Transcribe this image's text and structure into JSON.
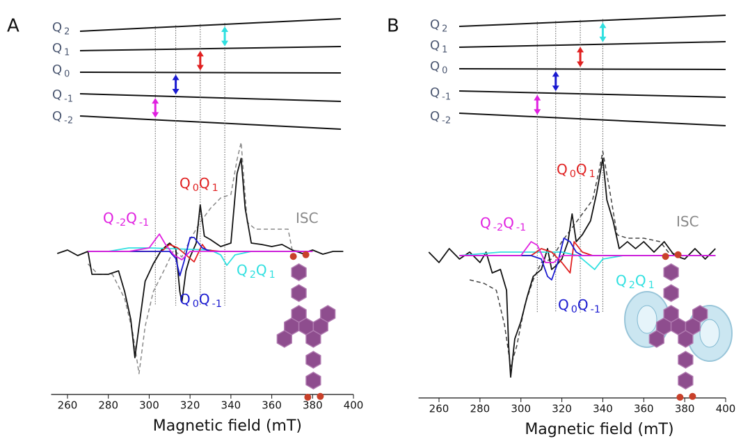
{
  "chart_data": [
    {
      "type": "line",
      "panel_label": "A",
      "xlabel": "Magnetic field (mT)",
      "xlim": [
        252,
        400
      ],
      "xticks": [
        260,
        280,
        300,
        320,
        340,
        360,
        380,
        400
      ],
      "ylim": [
        -1.8,
        1.6
      ],
      "levels": [
        {
          "parts": [
            "Q",
            "2"
          ]
        },
        {
          "parts": [
            "Q",
            "1"
          ]
        },
        {
          "parts": [
            "Q",
            "0"
          ]
        },
        {
          "parts": [
            "Q",
            "-1"
          ]
        },
        {
          "parts": [
            "Q",
            "-2"
          ]
        }
      ],
      "transitions": [
        {
          "field": 303,
          "color": "#e020e0"
        },
        {
          "field": 313,
          "color": "#1a1ad0"
        },
        {
          "field": 325,
          "color": "#e02020"
        },
        {
          "field": 337,
          "color": "#30e0e0"
        }
      ],
      "annotations": [
        {
          "parts": [
            "Q",
            "-2",
            "Q",
            "-1"
          ],
          "color": "#e020e0"
        },
        {
          "parts": [
            "Q",
            "0",
            "Q",
            "1"
          ],
          "color": "#e02020"
        },
        {
          "parts": [
            "ISC"
          ],
          "color": "#888888"
        },
        {
          "parts": [
            "Q",
            "2",
            "Q",
            "1"
          ],
          "color": "#30e0e0"
        },
        {
          "parts": [
            "Q",
            "0",
            "Q",
            "-1"
          ],
          "color": "#1a1ad0"
        }
      ],
      "series": [
        {
          "color": "#888888",
          "style": "dashed",
          "x": [
            270,
            275,
            282,
            288,
            292,
            295,
            298,
            302,
            308,
            312,
            316,
            320,
            325,
            330,
            335,
            340,
            343,
            345,
            348,
            352,
            360,
            368,
            370,
            375
          ],
          "values": [
            -0.18,
            -0.33,
            -0.33,
            -0.68,
            -1.18,
            -1.76,
            -1.08,
            -0.58,
            -0.23,
            0.02,
            -0.08,
            0.17,
            0.42,
            0.62,
            0.77,
            0.82,
            1.32,
            1.57,
            0.42,
            0.32,
            0.32,
            0.32,
            0.02,
            0
          ]
        },
        {
          "color": "#111111",
          "style": "solid",
          "x": [
            255,
            260,
            265,
            270,
            272,
            280,
            285,
            288,
            291,
            293,
            295,
            298,
            302,
            306,
            310,
            313,
            315,
            316,
            318,
            320,
            323,
            325,
            327,
            330,
            335,
            340,
            343,
            345,
            347,
            350,
            355,
            360,
            365,
            370,
            375,
            380,
            385,
            390,
            395
          ],
          "values": [
            -0.03,
            0.02,
            -0.06,
            0,
            -0.33,
            -0.33,
            -0.28,
            -0.58,
            -0.98,
            -1.53,
            -1.08,
            -0.43,
            -0.18,
            0.02,
            0.12,
            0.04,
            -0.58,
            -0.73,
            -0.28,
            -0.08,
            0.12,
            0.67,
            0.22,
            0.17,
            0.07,
            0.12,
            1.12,
            1.34,
            0.62,
            0.12,
            0.1,
            0.07,
            0.1,
            0.02,
            -0.03,
            0.02,
            -0.04,
            0,
            0
          ]
        },
        {
          "color": "#30e0e0",
          "style": "solid",
          "x": [
            280,
            290,
            300,
            320,
            330,
            335,
            338,
            342,
            350,
            370
          ],
          "values": [
            0,
            0.05,
            0.05,
            0.03,
            0.02,
            -0.05,
            -0.2,
            -0.05,
            0,
            0
          ]
        },
        {
          "color": "#e02020",
          "style": "solid",
          "x": [
            270,
            306,
            310,
            314,
            318,
            322,
            326,
            328,
            335,
            380
          ],
          "values": [
            0,
            0,
            0.1,
            0.05,
            -0.05,
            -0.15,
            0.1,
            0.02,
            0,
            0
          ]
        },
        {
          "color": "#1a1ad0",
          "style": "solid",
          "x": [
            270,
            300,
            310,
            313,
            315,
            317,
            320,
            322,
            326,
            330,
            380
          ],
          "values": [
            0,
            0,
            0,
            -0.1,
            -0.35,
            -0.15,
            0.2,
            0.2,
            0.05,
            0,
            0
          ]
        },
        {
          "color": "#e020e0",
          "style": "solid",
          "x": [
            270,
            290,
            300,
            305,
            308,
            312,
            316,
            320,
            380
          ],
          "values": [
            0,
            0,
            0.05,
            0.25,
            0.1,
            -0.05,
            -0.12,
            0,
            0
          ]
        }
      ]
    },
    {
      "type": "line",
      "panel_label": "B",
      "xlabel": "Magnetic field (mT)",
      "xlim": [
        250,
        400
      ],
      "xticks": [
        260,
        280,
        300,
        320,
        340,
        360,
        380,
        400
      ],
      "ylim": [
        -1.8,
        1.6
      ],
      "levels": [
        {
          "parts": [
            "Q",
            "2"
          ]
        },
        {
          "parts": [
            "Q",
            "1"
          ]
        },
        {
          "parts": [
            "Q",
            "0"
          ]
        },
        {
          "parts": [
            "Q",
            "-1"
          ]
        },
        {
          "parts": [
            "Q",
            "-2"
          ]
        }
      ],
      "transitions": [
        {
          "field": 308,
          "color": "#e020e0"
        },
        {
          "field": 317,
          "color": "#1a1ad0"
        },
        {
          "field": 329,
          "color": "#e02020"
        },
        {
          "field": 340,
          "color": "#30e0e0"
        }
      ],
      "annotations": [
        {
          "parts": [
            "Q",
            "-2",
            "Q",
            "-1"
          ],
          "color": "#e020e0"
        },
        {
          "parts": [
            "Q",
            "0",
            "Q",
            "1"
          ],
          "color": "#e02020"
        },
        {
          "parts": [
            "ISC"
          ],
          "color": "#888888"
        },
        {
          "parts": [
            "Q",
            "2",
            "Q",
            "1"
          ],
          "color": "#30e0e0"
        },
        {
          "parts": [
            "Q",
            "0",
            "Q",
            "-1"
          ],
          "color": "#1a1ad0"
        }
      ],
      "series": [
        {
          "color": "#444444",
          "style": "dashed",
          "x": [
            275,
            282,
            288,
            292,
            295,
            298,
            302,
            306,
            310,
            315,
            320,
            325,
            330,
            335,
            338,
            340,
            343,
            347,
            352,
            360,
            368,
            372,
            378
          ],
          "values": [
            -0.35,
            -0.4,
            -0.5,
            -1.0,
            -1.6,
            -1.3,
            -0.7,
            -0.35,
            -0.1,
            -0.05,
            0.2,
            0.4,
            0.6,
            0.8,
            1.2,
            1.5,
            1.0,
            0.3,
            0.25,
            0.25,
            0.2,
            0.05,
            0
          ]
        },
        {
          "color": "#111111",
          "style": "solid",
          "x": [
            255,
            260,
            265,
            270,
            275,
            280,
            283,
            286,
            290,
            293,
            294,
            295,
            297,
            300,
            303,
            306,
            310,
            313,
            315,
            317,
            320,
            323,
            325,
            327,
            330,
            334,
            337,
            340,
            342,
            345,
            348,
            352,
            356,
            360,
            365,
            370,
            375,
            380,
            385,
            390,
            395
          ],
          "values": [
            0.05,
            -0.1,
            0.1,
            -0.05,
            0.05,
            -0.1,
            0.05,
            -0.25,
            -0.2,
            -0.5,
            -1.3,
            -1.75,
            -1.2,
            -0.95,
            -0.6,
            -0.3,
            -0.2,
            0.1,
            -0.2,
            -0.15,
            -0.05,
            0.2,
            0.6,
            0.2,
            0.3,
            0.5,
            0.9,
            1.4,
            0.8,
            0.5,
            0.1,
            0.2,
            0.1,
            0.2,
            0.05,
            0.2,
            0,
            -0.05,
            0.1,
            -0.05,
            0.1
          ]
        },
        {
          "color": "#30e0e0",
          "style": "solid",
          "x": [
            270,
            290,
            300,
            320,
            328,
            332,
            336,
            340,
            350,
            395
          ],
          "values": [
            0,
            0.05,
            0.05,
            0.05,
            0,
            -0.1,
            -0.2,
            -0.05,
            0,
            0
          ]
        },
        {
          "color": "#e02020",
          "style": "solid",
          "x": [
            270,
            305,
            310,
            315,
            320,
            324,
            326,
            330,
            335,
            395
          ],
          "values": [
            0,
            0,
            0.1,
            0.05,
            -0.1,
            -0.25,
            0.2,
            0.05,
            0,
            0
          ]
        },
        {
          "color": "#1a1ad0",
          "style": "solid",
          "x": [
            270,
            305,
            310,
            313,
            315,
            318,
            321,
            324,
            327,
            330,
            395
          ],
          "values": [
            0,
            0,
            -0.05,
            -0.3,
            -0.35,
            -0.1,
            0.25,
            0.2,
            0.05,
            0,
            0
          ]
        },
        {
          "color": "#e020e0",
          "style": "solid",
          "x": [
            270,
            300,
            305,
            308,
            312,
            316,
            320,
            395
          ],
          "values": [
            0,
            0,
            0.2,
            0.15,
            -0.1,
            -0.1,
            0,
            0
          ]
        }
      ]
    }
  ]
}
